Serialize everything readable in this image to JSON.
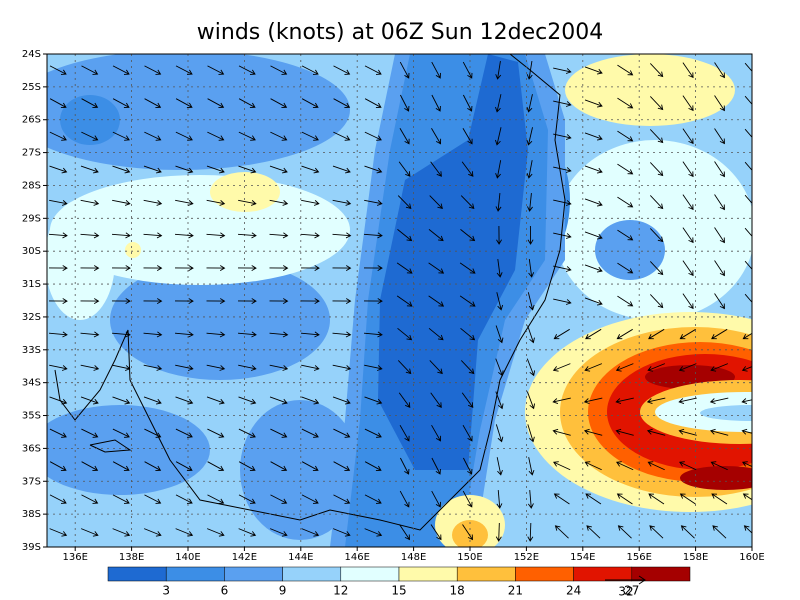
{
  "title": "winds (knots) at 06Z Sun 12dec2004",
  "map": {
    "lonlim": [
      135,
      160
    ],
    "latlim": [
      -24,
      -39
    ],
    "lonticks": [
      {
        "value": 136,
        "label": "136E"
      },
      {
        "value": 138,
        "label": "138E"
      },
      {
        "value": 140,
        "label": "140E"
      },
      {
        "value": 142,
        "label": "142E"
      },
      {
        "value": 144,
        "label": "144E"
      },
      {
        "value": 146,
        "label": "146E"
      },
      {
        "value": 148,
        "label": "148E"
      },
      {
        "value": 150,
        "label": "150E"
      },
      {
        "value": 152,
        "label": "152E"
      },
      {
        "value": 154,
        "label": "154E"
      },
      {
        "value": 156,
        "label": "156E"
      },
      {
        "value": 158,
        "label": "158E"
      },
      {
        "value": 160,
        "label": "160E"
      }
    ],
    "latticks": [
      {
        "value": -24,
        "label": "24S"
      },
      {
        "value": -25,
        "label": "25S"
      },
      {
        "value": -26,
        "label": "26S"
      },
      {
        "value": -27,
        "label": "27S"
      },
      {
        "value": -28,
        "label": "28S"
      },
      {
        "value": -29,
        "label": "29S"
      },
      {
        "value": -30,
        "label": "30S"
      },
      {
        "value": -31,
        "label": "31S"
      },
      {
        "value": -32,
        "label": "32S"
      },
      {
        "value": -33,
        "label": "33S"
      },
      {
        "value": -34,
        "label": "34S"
      },
      {
        "value": -35,
        "label": "35S"
      },
      {
        "value": -36,
        "label": "36S"
      },
      {
        "value": -37,
        "label": "37S"
      },
      {
        "value": -38,
        "label": "38S"
      },
      {
        "value": -39,
        "label": "39S"
      }
    ],
    "grid": true
  },
  "colorbar": {
    "levels": [
      3,
      6,
      9,
      12,
      15,
      18,
      21,
      24,
      27
    ],
    "colors": [
      "#1e6ad2",
      "#3c8ee6",
      "#5aa0f0",
      "#96d2fa",
      "#e1ffff",
      "#fffaaa",
      "#ffc03c",
      "#ff6000",
      "#e11400",
      "#a50000"
    ]
  },
  "vector_key": {
    "label": "32"
  }
}
